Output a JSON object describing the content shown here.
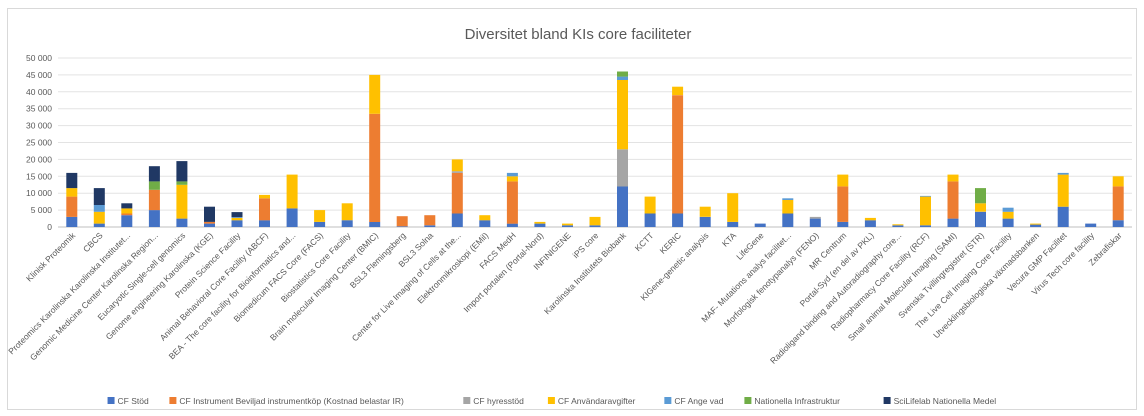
{
  "chart_data": {
    "type": "bar",
    "stacked": true,
    "title": "Diversitet bland KIs core faciliteter",
    "ylim": [
      0,
      50000
    ],
    "yticks": [
      "0",
      "5 000",
      "10 000",
      "15 000",
      "20 000",
      "25 000",
      "30 000",
      "35 000",
      "40 000",
      "45 000",
      "50 000"
    ],
    "grid": true,
    "legend_position": "bottom",
    "categories": [
      "Klinisk Proteomik",
      "CBCS",
      "Proteomics Karolinska Karolinska Institutet...",
      "Genomic Medicine Center Karolinska Region...",
      "Eucaryotic Single-cell genomics",
      "Genome engineering Karolinska (KGE)",
      "Protein Science Facility",
      "Animal Behavioral Core Facility (ABCF)",
      "BEA - The core facility for Bioinformatics and...",
      "Biomedicum FACS Core (FACS)",
      "Biostatistics Core Facility",
      "Brain molecular Imaging Center (BMIC)",
      "BSL3 Flemingsberg",
      "BSL3 Solna",
      "Center for Live Imaging of Cells at the...",
      "Elektronmikroskopi (EMil)",
      "FACS MedH",
      "Import portalen (Portal-Nord)",
      "INFINIGENE",
      "iPS core",
      "Karolinska Institutets Biobank",
      "KCTT",
      "KERIC",
      "KIGene-genetic analysis",
      "KTA",
      "LifeGene",
      "MAF- Mutations analys facilitet...",
      "Morfologisk fenotypanalys (FENO)",
      "MR Centrum",
      "Portal-Syd (en del av PKL)",
      "Radioligand binding and Autoradiography core...",
      "Radiopharmacy Core Facility (RCF)",
      "Small animal Molecular Imaging (SAMI)",
      "Svenska Tvillingregistret (STR)",
      "The Live Cell Imaging Core Facility",
      "Utvecklingsbiologiska växmadsbanken",
      "Vecura GMP Facilitet",
      "Virus Tech core facility",
      "Zebrafiskar"
    ],
    "series": [
      {
        "name": "CF Stöd",
        "color": "#4472C4",
        "values": [
          3000,
          1000,
          3500,
          5000,
          2500,
          1000,
          2000,
          2000,
          5500,
          1500,
          2000,
          1500,
          200,
          500,
          4000,
          2000,
          1000,
          1000,
          500,
          500,
          12000,
          4000,
          4000,
          3000,
          1500,
          1000,
          4000,
          2500,
          1500,
          2000,
          500,
          500,
          2500,
          4500,
          2500,
          700,
          6000,
          1000,
          2000
        ]
      },
      {
        "name": "CF Instrument Beviljad instrumentköp (Kostnad belastar IR)",
        "color": "#ED7D31",
        "values": [
          6000,
          0,
          500,
          6000,
          0,
          500,
          0,
          6500,
          0,
          0,
          0,
          32000,
          3000,
          3000,
          12000,
          0,
          12500,
          0,
          0,
          0,
          0,
          0,
          35000,
          0,
          0,
          0,
          0,
          0,
          10500,
          0,
          0,
          0,
          11000,
          0,
          0,
          0,
          0,
          0,
          10000
        ]
      },
      {
        "name": "CF hyresstöd",
        "color": "#A5A5A5",
        "values": [
          0,
          0,
          0,
          0,
          0,
          0,
          0,
          0,
          0,
          0,
          0,
          0,
          0,
          0,
          500,
          0,
          0,
          0,
          0,
          0,
          11000,
          0,
          0,
          0,
          0,
          0,
          0,
          500,
          0,
          0,
          0,
          0,
          0,
          0,
          0,
          0,
          0,
          0,
          0
        ]
      },
      {
        "name": "CF Användaravgifter",
        "color": "#FFC000",
        "values": [
          2500,
          3500,
          1500,
          0,
          10000,
          0,
          700,
          1000,
          10000,
          3500,
          5000,
          11500,
          0,
          0,
          3500,
          1500,
          1500,
          500,
          500,
          2500,
          20500,
          5000,
          2500,
          3000,
          8500,
          0,
          4000,
          0,
          3500,
          700,
          300,
          8500,
          2000,
          2500,
          2000,
          300,
          9500,
          0,
          3000
        ]
      },
      {
        "name": "CF Ange vad",
        "color": "#5B9BD5",
        "values": [
          0,
          2000,
          0,
          0,
          0,
          0,
          200,
          0,
          0,
          0,
          0,
          0,
          0,
          0,
          0,
          0,
          1000,
          0,
          0,
          0,
          1000,
          0,
          0,
          0,
          0,
          0,
          500,
          0,
          0,
          0,
          0,
          200,
          0,
          0,
          1200,
          0,
          500,
          0,
          0
        ]
      },
      {
        "name": "Nationella Infrastruktur",
        "color": "#70AD47",
        "values": [
          0,
          0,
          0,
          2500,
          1000,
          0,
          0,
          0,
          0,
          0,
          0,
          0,
          0,
          0,
          0,
          0,
          0,
          0,
          0,
          0,
          1500,
          0,
          0,
          0,
          0,
          0,
          0,
          0,
          0,
          0,
          0,
          0,
          0,
          4500,
          0,
          0,
          0,
          0,
          0
        ]
      },
      {
        "name": "SciLifelab Nationella Medel",
        "color": "#203864",
        "values": [
          4500,
          5000,
          1500,
          4500,
          6000,
          4500,
          1500,
          0,
          0,
          0,
          0,
          0,
          0,
          0,
          0,
          0,
          0,
          0,
          0,
          0,
          0,
          0,
          0,
          0,
          0,
          0,
          0,
          0,
          0,
          0,
          0,
          0,
          0,
          0,
          0,
          0,
          0,
          0,
          0
        ]
      }
    ]
  }
}
